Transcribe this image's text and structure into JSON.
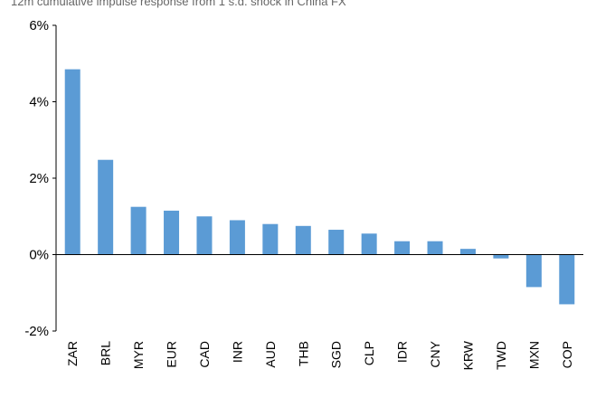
{
  "chart_data": {
    "type": "bar",
    "title": "12m cumulative impulse response from 1 s.d. shock in China FX",
    "xlabel": "",
    "ylabel": "",
    "categories": [
      "ZAR",
      "BRL",
      "MYR",
      "EUR",
      "CAD",
      "INR",
      "AUD",
      "THB",
      "SGD",
      "CLP",
      "IDR",
      "CNY",
      "KRW",
      "TWD",
      "MXN",
      "COP"
    ],
    "values": [
      4.85,
      2.48,
      1.25,
      1.15,
      1.0,
      0.9,
      0.8,
      0.75,
      0.65,
      0.55,
      0.35,
      0.35,
      0.15,
      -0.1,
      -0.85,
      -1.3
    ],
    "ylim": [
      -2,
      6
    ],
    "yticks": [
      -2,
      0,
      2,
      4,
      6
    ],
    "ytick_format": "percent",
    "grid": false,
    "legend": "none",
    "colors": {
      "bar": "#5b9bd5",
      "axis": "#000000"
    }
  }
}
